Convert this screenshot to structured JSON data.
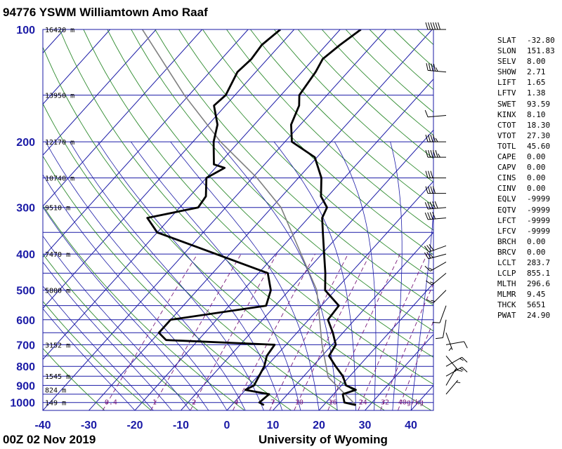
{
  "header": {
    "title": "94776 YSWM Williamtown Amo Raaf"
  },
  "footer": {
    "time": "00Z 02 Nov 2019",
    "source": "University of Wyoming"
  },
  "chart_data": {
    "type": "line",
    "chart_kind": "skew-T log-P diagram",
    "xlabel": "",
    "ylabel": "",
    "xlim": [
      -40,
      45
    ],
    "ylim": [
      1050,
      100
    ],
    "y_scale": "log",
    "pressure_ticks": [
      "100",
      "200",
      "300",
      "400",
      "500",
      "600",
      "700",
      "800",
      "900",
      "1000"
    ],
    "temperature_ticks": [
      "-40",
      "-30",
      "-20",
      "-10",
      "0",
      "10",
      "20",
      "30",
      "40"
    ],
    "height_labels": [
      {
        "pressure": 100,
        "label": "16420 m"
      },
      {
        "pressure": 150,
        "label": "13950 m"
      },
      {
        "pressure": 200,
        "label": "12170 m"
      },
      {
        "pressure": 250,
        "label": "10740 m"
      },
      {
        "pressure": 300,
        "label": "9510 m"
      },
      {
        "pressure": 400,
        "label": "7470 m"
      },
      {
        "pressure": 500,
        "label": "5800 m"
      },
      {
        "pressure": 700,
        "label": "3152 m"
      },
      {
        "pressure": 850,
        "label": "1545 m"
      },
      {
        "pressure": 925,
        "label": "824 m"
      },
      {
        "pressure": 1000,
        "label": "149 m"
      }
    ],
    "mixing_ratio_labels": [
      "0.4",
      "1",
      "2",
      "4",
      "7",
      "10",
      "16",
      "24",
      "32",
      "40g/kg"
    ],
    "series": [
      {
        "name": "Temperature",
        "color": "#000000",
        "points": [
          [
            1016,
            27.0
          ],
          [
            1000,
            24.0
          ],
          [
            950,
            22.0
          ],
          [
            925,
            24.0
          ],
          [
            900,
            21.0
          ],
          [
            850,
            18.5
          ],
          [
            800,
            15.0
          ],
          [
            750,
            11.5
          ],
          [
            700,
            10.8
          ],
          [
            650,
            7.8
          ],
          [
            600,
            4.2
          ],
          [
            550,
            3.8
          ],
          [
            500,
            -2.2
          ],
          [
            450,
            -5.5
          ],
          [
            400,
            -9.5
          ],
          [
            350,
            -14.0
          ],
          [
            320,
            -17.0
          ],
          [
            300,
            -18.0
          ],
          [
            280,
            -21.5
          ],
          [
            250,
            -25.0
          ],
          [
            220,
            -30.5
          ],
          [
            200,
            -38.5
          ],
          [
            180,
            -42.0
          ],
          [
            160,
            -44.0
          ],
          [
            150,
            -46.0
          ],
          [
            130,
            -47.0
          ],
          [
            120,
            -48.0
          ],
          [
            110,
            -47.0
          ],
          [
            100,
            -45.5
          ]
        ]
      },
      {
        "name": "Dewpoint",
        "color": "#000000",
        "points": [
          [
            1016,
            7.0
          ],
          [
            1000,
            5.5
          ],
          [
            950,
            6.0
          ],
          [
            925,
            0.0
          ],
          [
            900,
            1.0
          ],
          [
            800,
            -0.5
          ],
          [
            750,
            -2.0
          ],
          [
            700,
            -2.5
          ],
          [
            680,
            -27.0
          ],
          [
            650,
            -30.0
          ],
          [
            600,
            -30.0
          ],
          [
            550,
            -12.0
          ],
          [
            500,
            -14.0
          ],
          [
            450,
            -18.0
          ],
          [
            400,
            -33.0
          ],
          [
            350,
            -50.0
          ],
          [
            320,
            -55.0
          ],
          [
            300,
            -46.0
          ],
          [
            280,
            -46.5
          ],
          [
            250,
            -50.0
          ],
          [
            235,
            -48.0
          ],
          [
            230,
            -51.0
          ],
          [
            200,
            -55.5
          ],
          [
            180,
            -58.0
          ],
          [
            160,
            -62.5
          ],
          [
            150,
            -62.0
          ],
          [
            130,
            -64.0
          ],
          [
            120,
            -63.5
          ],
          [
            110,
            -64.0
          ],
          [
            100,
            -63.0
          ]
        ]
      }
    ],
    "parcel_path": [
      [
        1016,
        27.0
      ],
      [
        855,
        15.5
      ],
      [
        700,
        7.8
      ],
      [
        500,
        -4.0
      ],
      [
        400,
        -14.5
      ],
      [
        300,
        -28.0
      ],
      [
        250,
        -39.0
      ],
      [
        200,
        -54.0
      ],
      [
        150,
        -71.0
      ],
      [
        100,
        -93.0
      ]
    ],
    "grid": true,
    "legend": "none"
  },
  "indices": [
    {
      "name": "SLAT",
      "value": "-32.80"
    },
    {
      "name": "SLON",
      "value": "151.83"
    },
    {
      "name": "SELV",
      "value": "8.00"
    },
    {
      "name": "SHOW",
      "value": "2.71"
    },
    {
      "name": "LIFT",
      "value": "1.65"
    },
    {
      "name": "LFTV",
      "value": "1.38"
    },
    {
      "name": "SWET",
      "value": "93.59"
    },
    {
      "name": "KINX",
      "value": "8.10"
    },
    {
      "name": "CTOT",
      "value": "18.30"
    },
    {
      "name": "VTOT",
      "value": "27.30"
    },
    {
      "name": "TOTL",
      "value": "45.60"
    },
    {
      "name": "CAPE",
      "value": "0.00"
    },
    {
      "name": "CAPV",
      "value": "0.00"
    },
    {
      "name": "CINS",
      "value": "0.00"
    },
    {
      "name": "CINV",
      "value": "0.00"
    },
    {
      "name": "EQLV",
      "value": "-9999"
    },
    {
      "name": "EQTV",
      "value": "-9999"
    },
    {
      "name": "LFCT",
      "value": "-9999"
    },
    {
      "name": "LFCV",
      "value": "-9999"
    },
    {
      "name": "BRCH",
      "value": "0.00"
    },
    {
      "name": "BRCV",
      "value": "0.00"
    },
    {
      "name": "LCLT",
      "value": "283.7"
    },
    {
      "name": "LCLP",
      "value": "855.1"
    },
    {
      "name": "MLTH",
      "value": "296.6"
    },
    {
      "name": "MLMR",
      "value": "9.45"
    },
    {
      "name": "THCK",
      "value": "5651"
    },
    {
      "name": "PWAT",
      "value": "24.90"
    }
  ],
  "wind_barbs": [
    {
      "pressure": 100,
      "dir_deg": 270,
      "speed_kt": 60
    },
    {
      "pressure": 130,
      "dir_deg": 275,
      "speed_kt": 45
    },
    {
      "pressure": 170,
      "dir_deg": 265,
      "speed_kt": 10
    },
    {
      "pressure": 200,
      "dir_deg": 270,
      "speed_kt": 45
    },
    {
      "pressure": 220,
      "dir_deg": 270,
      "speed_kt": 55
    },
    {
      "pressure": 250,
      "dir_deg": 270,
      "speed_kt": 30
    },
    {
      "pressure": 275,
      "dir_deg": 270,
      "speed_kt": 40
    },
    {
      "pressure": 300,
      "dir_deg": 265,
      "speed_kt": 50
    },
    {
      "pressure": 320,
      "dir_deg": 265,
      "speed_kt": 40
    },
    {
      "pressure": 380,
      "dir_deg": 250,
      "speed_kt": 30
    },
    {
      "pressure": 400,
      "dir_deg": 255,
      "speed_kt": 25
    },
    {
      "pressure": 420,
      "dir_deg": 240,
      "speed_kt": 15
    },
    {
      "pressure": 450,
      "dir_deg": 230,
      "speed_kt": 15
    },
    {
      "pressure": 500,
      "dir_deg": 225,
      "speed_kt": 15
    },
    {
      "pressure": 550,
      "dir_deg": 200,
      "speed_kt": 10
    },
    {
      "pressure": 600,
      "dir_deg": 190,
      "speed_kt": 10
    },
    {
      "pressure": 650,
      "dir_deg": 160,
      "speed_kt": 5
    },
    {
      "pressure": 700,
      "dir_deg": 80,
      "speed_kt": 10
    },
    {
      "pressure": 750,
      "dir_deg": 140,
      "speed_kt": 5
    },
    {
      "pressure": 800,
      "dir_deg": 60,
      "speed_kt": 15
    },
    {
      "pressure": 850,
      "dir_deg": 60,
      "speed_kt": 15
    },
    {
      "pressure": 900,
      "dir_deg": 30,
      "speed_kt": 10
    },
    {
      "pressure": 950,
      "dir_deg": 40,
      "speed_kt": 5
    }
  ]
}
